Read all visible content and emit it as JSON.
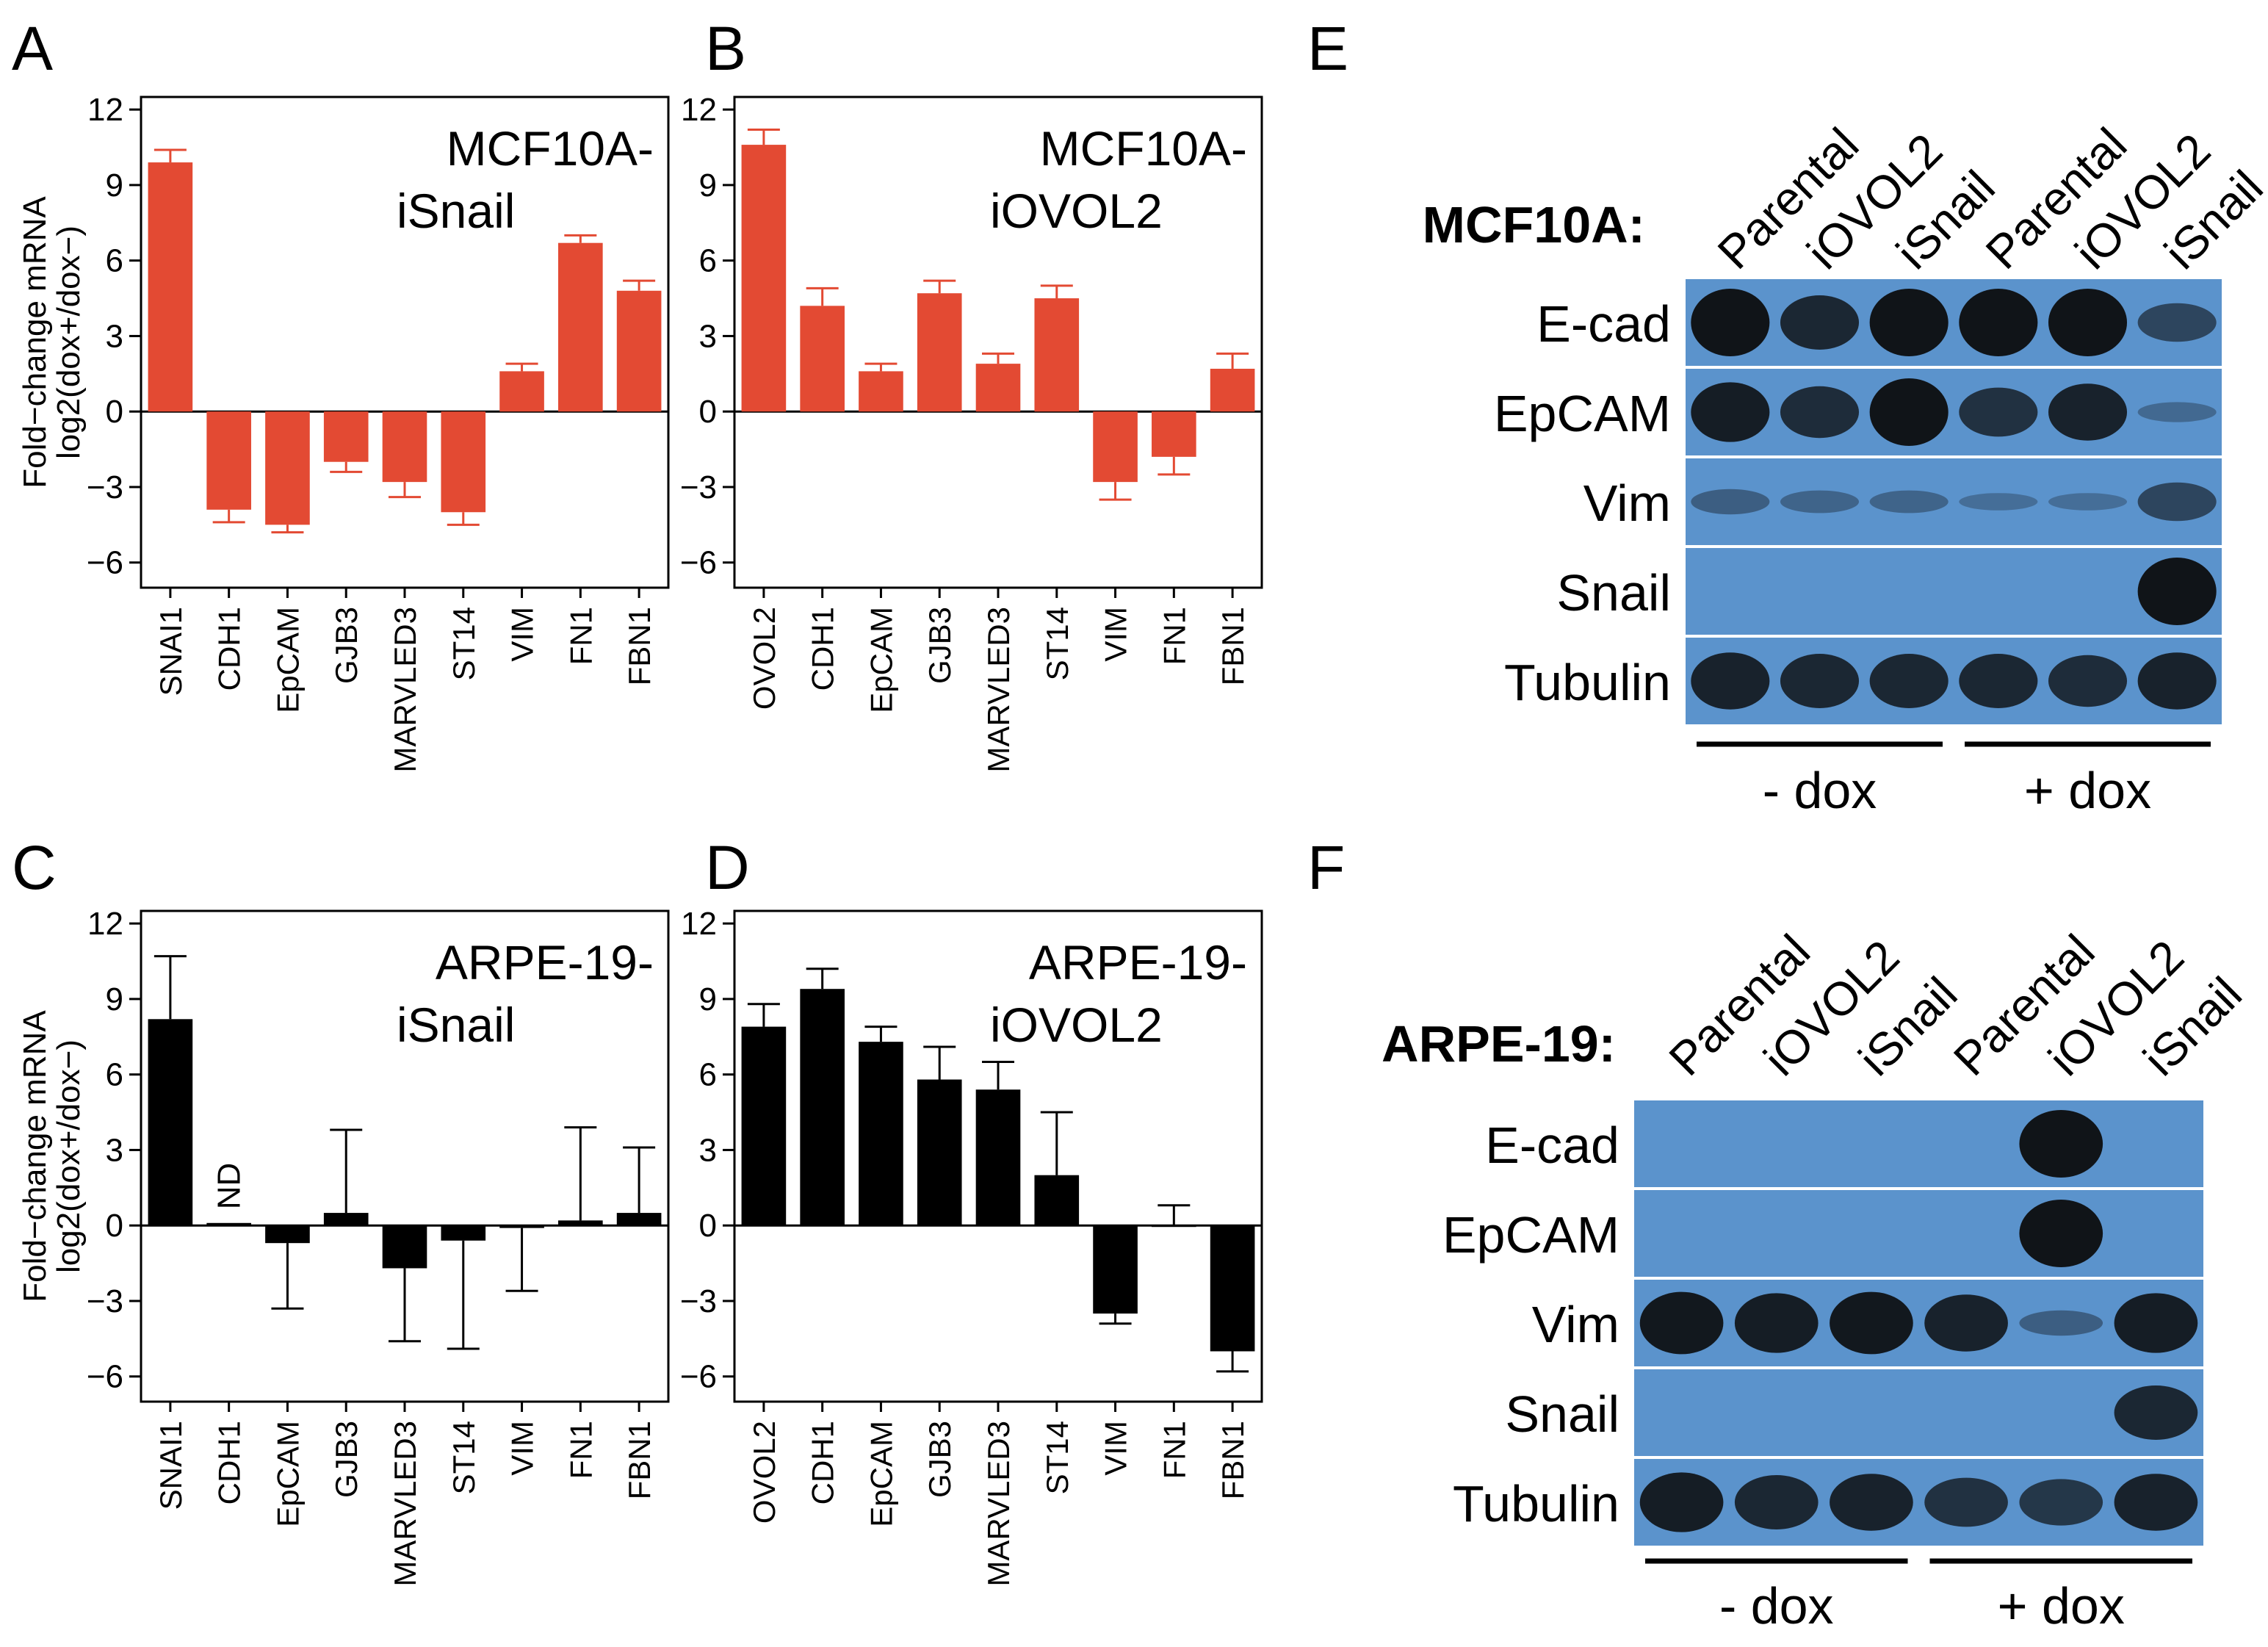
{
  "colors": {
    "red": "#e34a33",
    "black": "#000000",
    "blot": "#5b93cc",
    "band": "#101418"
  },
  "y_axis": {
    "label_line1": "Fold−change mRNA",
    "label_line2": "log2(dox+/dox−)"
  },
  "chart_data": [
    {
      "id": "A",
      "type": "bar",
      "panel_letter": "A",
      "title_line1": "MCF10A-",
      "title_line2": "iSnail",
      "categories": [
        "SNAI1",
        "CDH1",
        "EpCAM",
        "GJB3",
        "MARVLED3",
        "ST14",
        "VIM",
        "FN1",
        "FBN1"
      ],
      "values": [
        9.9,
        -3.9,
        -4.5,
        -2.0,
        -2.8,
        -4.0,
        1.6,
        6.7,
        4.8
      ],
      "errors": [
        0.5,
        0.5,
        0.3,
        0.4,
        0.6,
        0.5,
        0.3,
        0.3,
        0.4
      ],
      "color": "#e34a33",
      "yticks": [
        "-6",
        "-3",
        "0",
        "3",
        "6",
        "9",
        "12"
      ],
      "ylabel": "Fold−change mRNA log2(dox+/dox−)",
      "ylim": [
        -7,
        12.5
      ]
    },
    {
      "id": "B",
      "type": "bar",
      "panel_letter": "B",
      "title_line1": "MCF10A-",
      "title_line2": "iOVOL2",
      "categories": [
        "OVOL2",
        "CDH1",
        "EpCAM",
        "GJB3",
        "MARVLED3",
        "ST14",
        "VIM",
        "FN1",
        "FBN1"
      ],
      "values": [
        10.6,
        4.2,
        1.6,
        4.7,
        1.9,
        4.5,
        -2.8,
        -1.8,
        1.7
      ],
      "errors": [
        0.6,
        0.7,
        0.3,
        0.5,
        0.4,
        0.5,
        0.7,
        0.7,
        0.6
      ],
      "color": "#e34a33",
      "yticks": [
        "-6",
        "-3",
        "0",
        "3",
        "6",
        "9",
        "12"
      ],
      "ylabel": "",
      "ylim": [
        -7,
        12.5
      ]
    },
    {
      "id": "C",
      "type": "bar",
      "panel_letter": "C",
      "title_line1": "ARPE-19-",
      "title_line2": "iSnail",
      "categories": [
        "SNAI1",
        "CDH1",
        "EpCAM",
        "GJB3",
        "MARVLED3",
        "ST14",
        "VIM",
        "FN1",
        "FBN1"
      ],
      "values": [
        8.2,
        0.1,
        -0.7,
        0.5,
        -1.7,
        -0.6,
        -0.1,
        0.2,
        0.5
      ],
      "errors": [
        2.5,
        0,
        2.6,
        3.3,
        2.9,
        4.3,
        2.5,
        3.7,
        2.6
      ],
      "color": "#000000",
      "annotation": "ND",
      "yticks": [
        "-6",
        "-3",
        "0",
        "3",
        "6",
        "9",
        "12"
      ],
      "ylabel": "Fold−change mRNA log2(dox+/dox−)",
      "ylim": [
        -7,
        12.5
      ]
    },
    {
      "id": "D",
      "type": "bar",
      "panel_letter": "D",
      "title_line1": "ARPE-19-",
      "title_line2": "iOVOL2",
      "categories": [
        "OVOL2",
        "CDH1",
        "EpCAM",
        "GJB3",
        "MARVLED3",
        "ST14",
        "VIM",
        "FN1",
        "FBN1"
      ],
      "values": [
        7.9,
        9.4,
        7.3,
        5.8,
        5.4,
        2.0,
        -3.5,
        0.0,
        -5.0
      ],
      "errors": [
        0.9,
        0.8,
        0.6,
        1.3,
        1.1,
        2.5,
        0.4,
        0.8,
        0.8
      ],
      "color": "#000000",
      "yticks": [
        "-6",
        "-3",
        "0",
        "3",
        "6",
        "9",
        "12"
      ],
      "ylabel": "",
      "ylim": [
        -7,
        12.5
      ]
    }
  ],
  "blots": [
    {
      "id": "E",
      "panel_letter": "E",
      "cell_line": "MCF10A:",
      "lanes": [
        "Parental",
        "iOVOL2",
        "iSnail",
        "Parental",
        "iOVOL2",
        "iSnail"
      ],
      "groups": [
        "- dox",
        "+ dox"
      ],
      "rows": [
        {
          "label": "E-cad",
          "intensity": [
            1.0,
            0.75,
            1.0,
            1.0,
            1.0,
            0.45
          ]
        },
        {
          "label": "EpCAM",
          "intensity": [
            0.85,
            0.7,
            1.0,
            0.65,
            0.8,
            0.1
          ]
        },
        {
          "label": "Vim",
          "intensity": [
            0.2,
            0.15,
            0.15,
            0.05,
            0.05,
            0.45
          ]
        },
        {
          "label": "Snail",
          "intensity": [
            0,
            0,
            0,
            0,
            0,
            1.0
          ]
        },
        {
          "label": "Tubulin",
          "intensity": [
            0.8,
            0.75,
            0.75,
            0.75,
            0.7,
            0.8
          ]
        }
      ]
    },
    {
      "id": "F",
      "panel_letter": "F",
      "cell_line": "ARPE-19:",
      "lanes": [
        "Parental",
        "iOVOL2",
        "iSnail",
        "Parental",
        "iOVOL2",
        "iSnail"
      ],
      "groups": [
        "- dox",
        "+ dox"
      ],
      "rows": [
        {
          "label": "E-cad",
          "intensity": [
            0,
            0,
            0,
            0,
            1.0,
            0
          ]
        },
        {
          "label": "EpCAM",
          "intensity": [
            0,
            0,
            0,
            0,
            1.0,
            0
          ]
        },
        {
          "label": "Vim",
          "intensity": [
            0.9,
            0.85,
            0.9,
            0.8,
            0.2,
            0.85
          ]
        },
        {
          "label": "Snail",
          "intensity": [
            0,
            0,
            0,
            0,
            0,
            0.75
          ]
        },
        {
          "label": "Tubulin",
          "intensity": [
            0.85,
            0.75,
            0.8,
            0.65,
            0.6,
            0.8
          ]
        }
      ]
    }
  ]
}
